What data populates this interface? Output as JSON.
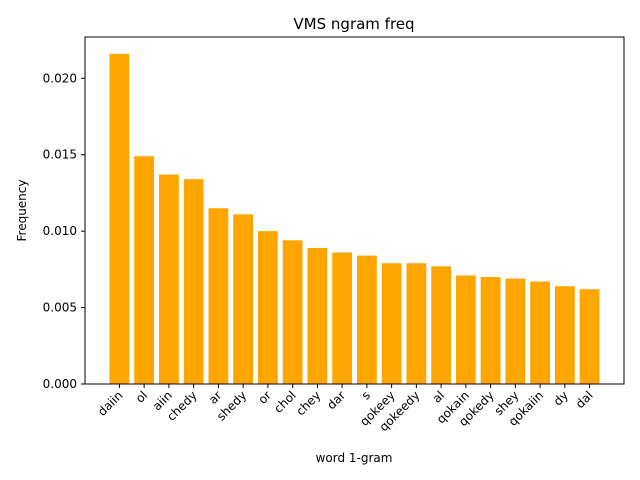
{
  "chart_data": {
    "type": "bar",
    "title": "VMS ngram freq",
    "xlabel": "word 1-gram",
    "ylabel": "Frequency",
    "categories": [
      "daiin",
      "ol",
      "aiin",
      "chedy",
      "ar",
      "shedy",
      "or",
      "chol",
      "chey",
      "dar",
      "s",
      "qokeey",
      "qokeedy",
      "al",
      "qokain",
      "qokedy",
      "shey",
      "qokaiin",
      "dy",
      "dal"
    ],
    "values": [
      0.0216,
      0.0149,
      0.0137,
      0.0134,
      0.0115,
      0.0111,
      0.01,
      0.0094,
      0.0089,
      0.0086,
      0.0084,
      0.0079,
      0.0079,
      0.0077,
      0.0071,
      0.007,
      0.0069,
      0.0067,
      0.0064,
      0.0062
    ],
    "ylim": [
      0,
      0.0227
    ],
    "yticks": [
      "0.000",
      "0.005",
      "0.010",
      "0.015",
      "0.020"
    ],
    "bar_color": "#ffa500",
    "grid": false,
    "x_tick_rotation_deg": 45
  }
}
